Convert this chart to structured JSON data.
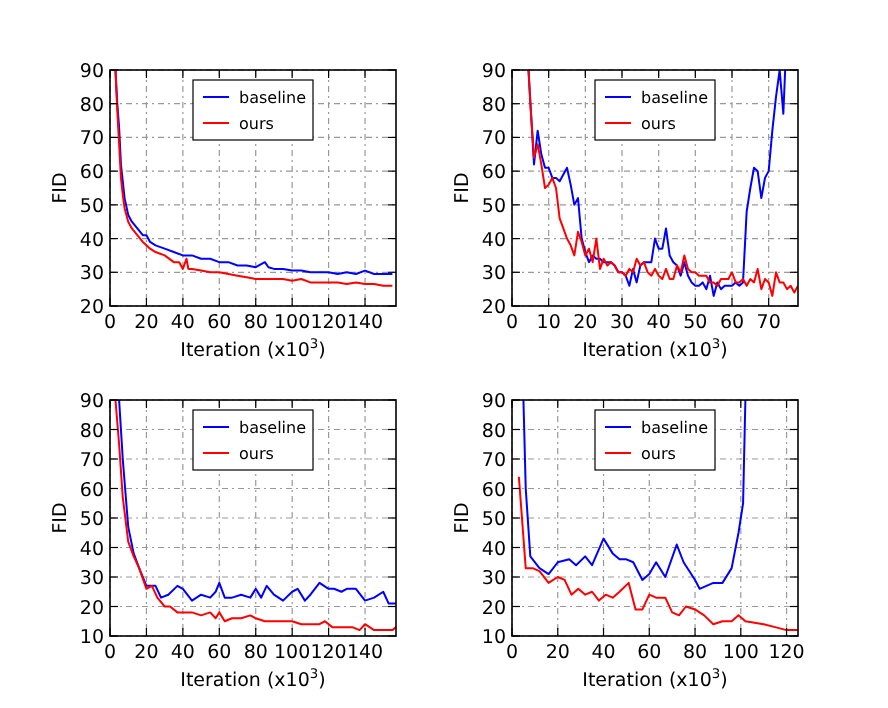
{
  "chart_data": [
    {
      "type": "line",
      "xlabel": "Iteration (x10$^{3}$)",
      "ylabel": "FID",
      "xlim": [
        0,
        157
      ],
      "ylim": [
        20,
        90
      ],
      "xticks": [
        0,
        20,
        40,
        60,
        80,
        100,
        120,
        140
      ],
      "yticks": [
        20,
        30,
        40,
        50,
        60,
        70,
        80,
        90
      ],
      "grid": true,
      "legend": "top",
      "line_style": "solid",
      "series": [
        {
          "name": "baseline",
          "color": "#0000ff",
          "x": [
            3,
            4,
            5,
            6,
            7,
            8,
            10,
            12,
            15,
            18,
            20,
            22,
            25,
            30,
            35,
            40,
            45,
            50,
            55,
            60,
            65,
            70,
            75,
            80,
            85,
            87,
            90,
            95,
            100,
            105,
            110,
            115,
            120,
            125,
            130,
            135,
            140,
            145,
            150,
            155
          ],
          "values": [
            90,
            80,
            73,
            62,
            57,
            52,
            47,
            45,
            43,
            41,
            41,
            39,
            38,
            37,
            36,
            35,
            35,
            34,
            34,
            33,
            33,
            32,
            32,
            31.5,
            33,
            31.5,
            31,
            31,
            30.5,
            30.5,
            30,
            30,
            30,
            29.5,
            30,
            29.5,
            30.5,
            29.5,
            29.5,
            29.5
          ]
        },
        {
          "name": "ours",
          "color": "#ff0000",
          "x": [
            3,
            4,
            5,
            6,
            7,
            8,
            10,
            12,
            15,
            18,
            20,
            22,
            25,
            30,
            35,
            38,
            40,
            42,
            43,
            45,
            50,
            55,
            60,
            65,
            70,
            75,
            80,
            85,
            90,
            95,
            100,
            105,
            110,
            115,
            120,
            125,
            130,
            135,
            140,
            145,
            150,
            155
          ],
          "values": [
            90,
            78,
            68,
            58,
            53,
            49,
            45,
            43,
            41,
            39,
            38,
            37,
            36,
            35,
            33,
            33,
            31,
            34,
            31,
            31,
            30.5,
            30,
            30,
            29.5,
            29,
            28.5,
            28,
            28,
            28,
            28,
            27.5,
            28,
            27,
            27,
            27,
            27,
            26.5,
            27,
            26.5,
            26.5,
            26,
            26
          ]
        }
      ]
    },
    {
      "type": "line",
      "xlabel": "Iteration (x10$^{3}$)",
      "ylabel": "FID",
      "xlim": [
        0,
        78
      ],
      "ylim": [
        20,
        90
      ],
      "xticks": [
        0,
        10,
        20,
        30,
        40,
        50,
        60,
        70
      ],
      "yticks": [
        20,
        30,
        40,
        50,
        60,
        70,
        80,
        90
      ],
      "grid": true,
      "legend": "top",
      "line_style": "solid",
      "series": [
        {
          "name": "baseline",
          "color": "#0000ff",
          "x": [
            4.5,
            6,
            7,
            8,
            9,
            10,
            11,
            12,
            13,
            14,
            15,
            16,
            17,
            18,
            19,
            20,
            21,
            22,
            23,
            24,
            25,
            26,
            27,
            28,
            29,
            30,
            31,
            32,
            33,
            34,
            35,
            36,
            37,
            38,
            39,
            40,
            41,
            42,
            43,
            44,
            45,
            46,
            47,
            48,
            49,
            50,
            51,
            52,
            53,
            54,
            55,
            56,
            57,
            58,
            59,
            60,
            61,
            62,
            63,
            64,
            65,
            66,
            67,
            68,
            69,
            70,
            71,
            72,
            73,
            74,
            74.5
          ],
          "values": [
            90,
            62,
            72,
            65,
            61,
            61,
            58,
            58,
            57,
            59,
            61,
            56,
            50,
            52,
            40,
            36,
            33,
            35,
            34,
            34,
            33,
            33,
            33,
            32,
            30,
            30,
            29,
            26,
            31,
            27,
            32,
            33,
            33,
            33,
            40,
            37,
            37,
            43,
            35,
            33,
            32,
            29,
            33,
            29,
            27,
            26,
            26,
            27,
            25,
            29,
            23,
            27,
            25,
            26,
            26,
            26,
            27,
            26,
            27,
            48,
            55,
            61,
            60,
            52,
            58,
            60,
            72,
            82,
            90,
            77,
            90
          ]
        },
        {
          "name": "ours",
          "color": "#ff0000",
          "x": [
            4.5,
            5,
            6,
            7,
            8,
            9,
            10,
            11,
            12,
            13,
            14,
            15,
            16,
            17,
            18,
            19,
            20,
            21,
            22,
            23,
            24,
            25,
            26,
            27,
            28,
            29,
            30,
            31,
            32,
            33,
            34,
            35,
            36,
            37,
            38,
            39,
            40,
            41,
            42,
            43,
            44,
            45,
            46,
            47,
            48,
            49,
            50,
            51,
            52,
            53,
            54,
            55,
            56,
            57,
            58,
            59,
            60,
            61,
            62,
            63,
            64,
            65,
            66,
            67,
            68,
            69,
            70,
            71,
            72,
            73,
            74,
            75,
            76,
            77,
            78
          ],
          "values": [
            90,
            80,
            64,
            68,
            62,
            55,
            56,
            58,
            55,
            46,
            43,
            40,
            38,
            35,
            42,
            39,
            35,
            37,
            33,
            40,
            31,
            34,
            32,
            33,
            32,
            30,
            30,
            29,
            31,
            30,
            34,
            32,
            33,
            30,
            29,
            31,
            29,
            28,
            31,
            28,
            28,
            32,
            30,
            35,
            31,
            30,
            30,
            29,
            29,
            29,
            27,
            27,
            26,
            28,
            28,
            28,
            30,
            27,
            27,
            28,
            26,
            28,
            27,
            31,
            25,
            28,
            27,
            23,
            30,
            27,
            27,
            25,
            26,
            24,
            26
          ]
        }
      ]
    },
    {
      "type": "line",
      "xlabel": "Iteration (x10$^{3}$)",
      "ylabel": "FID",
      "xlim": [
        0,
        157
      ],
      "ylim": [
        10,
        90
      ],
      "xticks": [
        0,
        20,
        40,
        60,
        80,
        100,
        120,
        140
      ],
      "yticks": [
        10,
        20,
        30,
        40,
        50,
        60,
        70,
        80,
        90
      ],
      "grid": true,
      "legend": "top",
      "line_style": "solid",
      "series": [
        {
          "name": "baseline",
          "color": "#0000ff",
          "x": [
            5,
            7,
            10,
            13,
            16,
            20,
            22,
            25,
            28,
            32,
            37,
            40,
            45,
            50,
            55,
            58,
            60,
            63,
            67,
            72,
            77,
            80,
            83,
            86,
            90,
            95,
            100,
            103,
            107,
            110,
            115,
            120,
            123,
            127,
            130,
            135,
            140,
            145,
            150,
            153,
            157
          ],
          "values": [
            90,
            70,
            47,
            38,
            33,
            27,
            27,
            27,
            23,
            24,
            27,
            26,
            22,
            24,
            23,
            25,
            28,
            23,
            23,
            24,
            23,
            26,
            23,
            27,
            24,
            22,
            25,
            26,
            22,
            24,
            28,
            26,
            26,
            25,
            26,
            26,
            22,
            23,
            25,
            21,
            21
          ]
        },
        {
          "name": "ours",
          "color": "#ff0000",
          "x": [
            3,
            5,
            7,
            10,
            13,
            16,
            20,
            23,
            26,
            30,
            33,
            37,
            40,
            45,
            50,
            55,
            58,
            60,
            63,
            67,
            72,
            77,
            80,
            85,
            90,
            95,
            100,
            105,
            110,
            115,
            118,
            122,
            127,
            133,
            137,
            140,
            145,
            150,
            155,
            157
          ],
          "values": [
            90,
            75,
            57,
            42,
            37,
            33,
            26,
            27,
            23,
            20,
            20,
            18,
            18,
            18,
            17,
            18,
            16,
            18,
            15,
            16,
            16,
            17,
            16,
            15,
            15,
            15,
            15,
            14,
            14,
            14,
            15,
            13,
            13,
            13,
            12,
            14,
            12,
            12,
            12,
            13
          ]
        }
      ]
    },
    {
      "type": "line",
      "xlabel": "Iteration (x10$^{3}$)",
      "ylabel": "FID",
      "xlim": [
        0,
        125
      ],
      "ylim": [
        10,
        90
      ],
      "xticks": [
        0,
        20,
        40,
        60,
        80,
        100,
        120
      ],
      "yticks": [
        10,
        20,
        30,
        40,
        50,
        60,
        70,
        80,
        90
      ],
      "grid": true,
      "legend": "top",
      "line_style": "solid",
      "series": [
        {
          "name": "baseline",
          "color": "#0000ff",
          "x": [
            5,
            6,
            8,
            12,
            16,
            20,
            25,
            28,
            32,
            35,
            40,
            44,
            47,
            50,
            53,
            57,
            60,
            63,
            67,
            72,
            75,
            80,
            82,
            88,
            92,
            96,
            99,
            101,
            102
          ],
          "values": [
            90,
            60,
            37,
            33,
            31,
            35,
            36,
            34,
            37,
            34,
            43,
            38,
            36,
            36,
            35,
            29,
            31,
            35,
            30,
            41,
            35,
            29,
            26,
            28,
            28,
            33,
            45,
            55,
            90
          ]
        },
        {
          "name": "ours",
          "color": "#ff0000",
          "x": [
            3,
            6,
            9,
            12,
            16,
            20,
            23,
            26,
            29,
            32,
            35,
            38,
            41,
            44,
            47,
            51,
            54,
            57,
            60,
            63,
            67,
            70,
            73,
            76,
            80,
            84,
            88,
            92,
            96,
            99,
            102,
            110,
            115,
            120,
            125
          ],
          "values": [
            64,
            33,
            33,
            32,
            28,
            30,
            29,
            24,
            26,
            24,
            25,
            22,
            24,
            23,
            25,
            28,
            19,
            19,
            24,
            23,
            23,
            18,
            17,
            20,
            19,
            17,
            14,
            15,
            15,
            17,
            15,
            14,
            13,
            12,
            12
          ]
        }
      ]
    }
  ]
}
